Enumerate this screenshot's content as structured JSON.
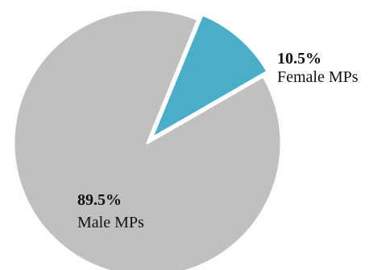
{
  "chart_data": {
    "type": "pie",
    "title": "",
    "slices": [
      {
        "label": "Female MPs",
        "value": 10.5,
        "value_label": "10.5%",
        "color": "#4BAEC8",
        "exploded": true
      },
      {
        "label": "Male MPs",
        "value": 89.5,
        "value_label": "89.5%",
        "color": "#C0C0C0",
        "exploded": false
      }
    ],
    "start_angle_deg": -30,
    "direction": "counterclockwise",
    "legend": "none",
    "data_labels": "outside-top-right for Female MPs, inside-lower-left for Male MPs"
  }
}
